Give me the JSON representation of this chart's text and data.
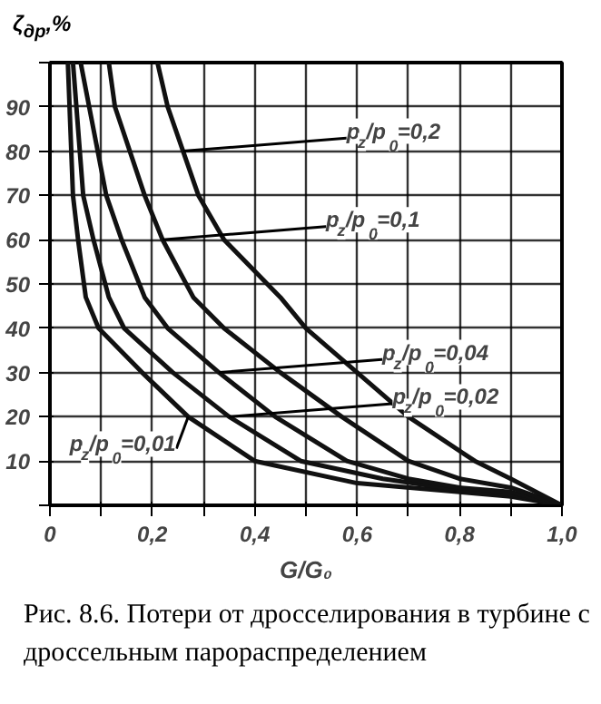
{
  "chart_data": {
    "type": "line",
    "xlabel": "G/G₀",
    "ylabel": "ζ$_{др}$,%",
    "xlim": [
      0,
      1.0
    ],
    "ylim": [
      0,
      100
    ],
    "xticks": [
      {
        "value": 0,
        "label": "0"
      },
      {
        "value": 0.1,
        "label": null
      },
      {
        "value": 0.2,
        "label": "0,2"
      },
      {
        "value": 0.3,
        "label": null
      },
      {
        "value": 0.4,
        "label": "0,4"
      },
      {
        "value": 0.5,
        "label": null
      },
      {
        "value": 0.6,
        "label": "0,6"
      },
      {
        "value": 0.7,
        "label": null
      },
      {
        "value": 0.8,
        "label": "0,8"
      },
      {
        "value": 0.9,
        "label": null
      },
      {
        "value": 1.0,
        "label": "1,0"
      }
    ],
    "yticks": [
      {
        "value": 0,
        "label": null
      },
      10,
      20,
      30,
      40,
      50,
      60,
      70,
      80,
      90,
      {
        "value": 100,
        "label": null
      }
    ],
    "grid": true,
    "line_style": "solid",
    "marker": "none",
    "series": [
      {
        "color": "#111111",
        "x": [
          0.035,
          0.045,
          0.055,
          0.07,
          0.095,
          0.18,
          0.27,
          0.4,
          0.6,
          0.8,
          0.9,
          1.0
        ],
        "values": [
          100,
          70,
          60,
          47,
          40,
          30,
          20,
          10,
          5,
          3,
          2,
          0
        ]
      },
      {
        "color": "#111111",
        "x": [
          0.045,
          0.065,
          0.085,
          0.115,
          0.145,
          0.24,
          0.35,
          0.49,
          0.65,
          0.8,
          0.9,
          1.0
        ],
        "values": [
          100,
          70,
          60,
          47,
          40,
          30,
          20,
          10,
          6,
          3.5,
          2.5,
          0
        ]
      },
      {
        "color": "#111111",
        "x": [
          0.06,
          0.11,
          0.14,
          0.185,
          0.23,
          0.33,
          0.44,
          0.58,
          0.7,
          0.8,
          0.9,
          1.0
        ],
        "values": [
          100,
          70,
          60,
          47,
          40,
          30,
          20,
          10,
          6,
          4,
          3,
          0
        ]
      },
      {
        "color": "#111111",
        "x": [
          0.115,
          0.127,
          0.185,
          0.22,
          0.28,
          0.34,
          0.45,
          0.57,
          0.7,
          0.8,
          0.9,
          1.0
        ],
        "values": [
          100,
          90,
          70,
          60,
          47,
          40,
          30,
          20,
          10,
          6,
          4,
          0
        ]
      },
      {
        "color": "#111111",
        "x": [
          0.21,
          0.23,
          0.26,
          0.29,
          0.34,
          0.45,
          0.5,
          0.6,
          0.7,
          0.83,
          0.9,
          1.0
        ],
        "values": [
          100,
          90,
          80,
          70,
          60,
          47,
          40,
          30,
          20,
          10,
          6,
          0
        ]
      }
    ],
    "annotations": [
      {
        "text": "p$_{z}$/p$_{0}$=0,2",
        "x": 0.26,
        "y": 80
      },
      {
        "text": "p$_{z}$/p$_{0}$=0,1",
        "x": 0.22,
        "y": 60
      },
      {
        "text": "p$_{z}$/p$_{0}$=0,04",
        "x": 0.33,
        "y": 30
      },
      {
        "text": "p$_{z}$/p$_{0}$=0,02",
        "x": 0.35,
        "y": 20
      },
      {
        "text": "p$_{z}$/p$_{0}$=0,01",
        "x": 0.27,
        "y": 20
      },
      "Рис. 8.6. Потери от дросселирования в турбине с дроссельным парораспределением"
    ]
  }
}
